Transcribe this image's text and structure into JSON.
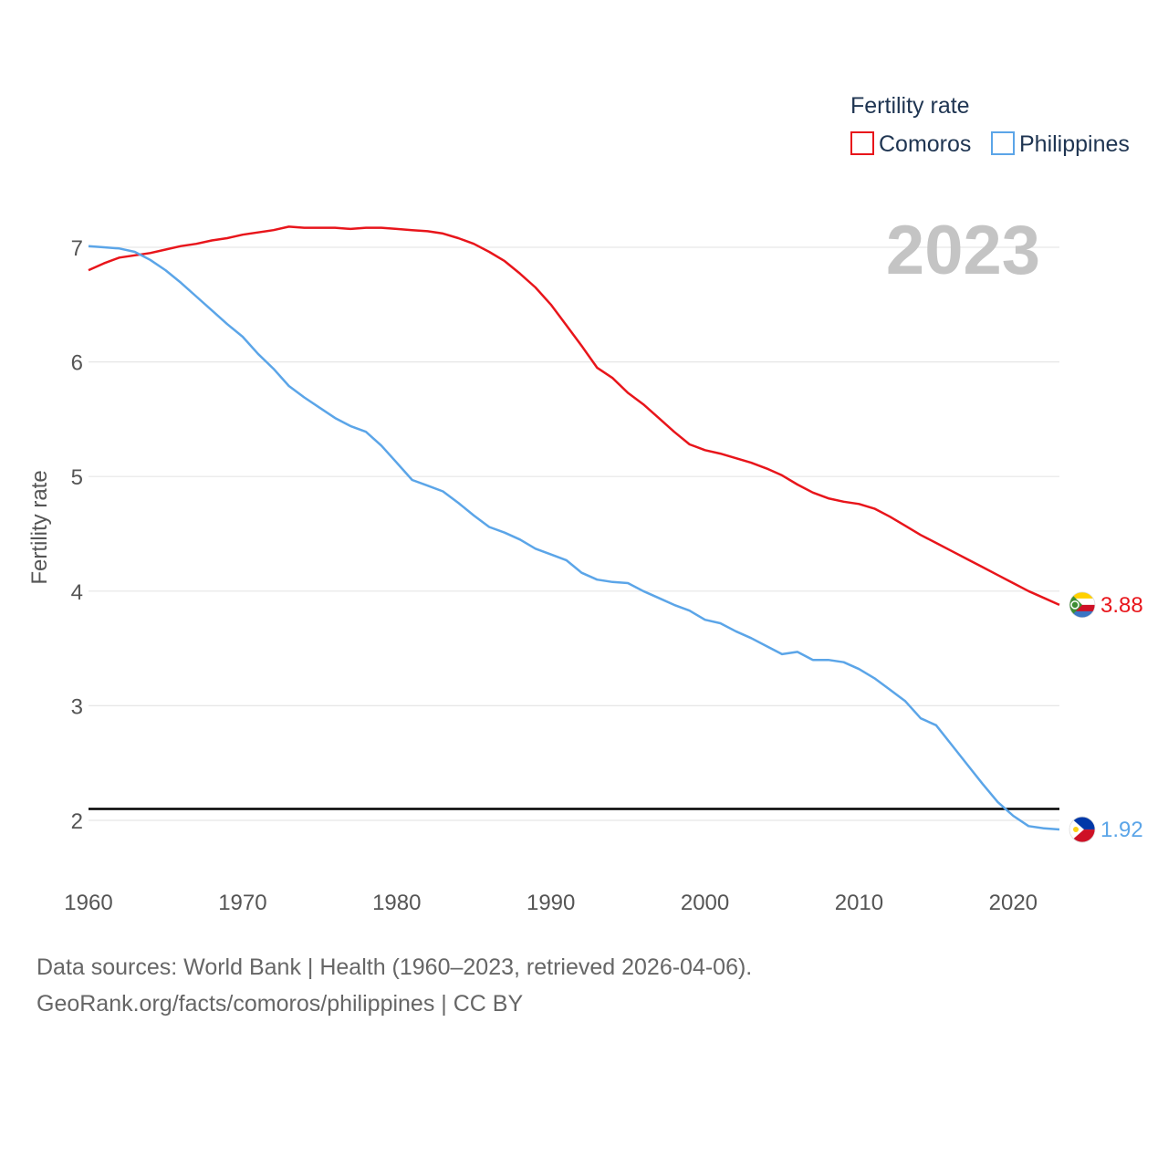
{
  "chart_data": {
    "type": "line",
    "title": "Fertility rate",
    "current_year": "2023",
    "ylabel": "Fertility rate",
    "xlabel": "",
    "xlim": [
      1960,
      2023
    ],
    "ylim": [
      1.5,
      7.5
    ],
    "x_ticks": [
      1960,
      1970,
      1980,
      1990,
      2000,
      2010,
      2020
    ],
    "y_ticks": [
      2,
      3,
      4,
      5,
      6,
      7
    ],
    "reference_line": 2.1,
    "legend_position": "top-right",
    "x": [
      1960,
      1961,
      1962,
      1963,
      1964,
      1965,
      1966,
      1967,
      1968,
      1969,
      1970,
      1971,
      1972,
      1973,
      1974,
      1975,
      1976,
      1977,
      1978,
      1979,
      1980,
      1981,
      1982,
      1983,
      1984,
      1985,
      1986,
      1987,
      1988,
      1989,
      1990,
      1991,
      1992,
      1993,
      1994,
      1995,
      1996,
      1997,
      1998,
      1999,
      2000,
      2001,
      2002,
      2003,
      2004,
      2005,
      2006,
      2007,
      2008,
      2009,
      2010,
      2011,
      2012,
      2013,
      2014,
      2015,
      2016,
      2017,
      2018,
      2019,
      2020,
      2021,
      2022,
      2023
    ],
    "series": [
      {
        "name": "Comoros",
        "color": "#e8151b",
        "flag": "comoros-flag-icon",
        "end_label": "3.88",
        "values": [
          6.8,
          6.86,
          6.91,
          6.93,
          6.95,
          6.98,
          7.01,
          7.03,
          7.06,
          7.08,
          7.11,
          7.13,
          7.15,
          7.18,
          7.17,
          7.17,
          7.17,
          7.16,
          7.17,
          7.17,
          7.16,
          7.15,
          7.14,
          7.12,
          7.08,
          7.03,
          6.96,
          6.88,
          6.77,
          6.65,
          6.5,
          6.32,
          6.14,
          5.95,
          5.86,
          5.73,
          5.63,
          5.51,
          5.39,
          5.28,
          5.23,
          5.2,
          5.16,
          5.12,
          5.07,
          5.01,
          4.93,
          4.86,
          4.81,
          4.78,
          4.76,
          4.72,
          4.65,
          4.57,
          4.49,
          4.42,
          4.35,
          4.28,
          4.21,
          4.14,
          4.07,
          4.0,
          3.94,
          3.88
        ]
      },
      {
        "name": "Philippines",
        "color": "#5ba5e8",
        "flag": "philippines-flag-icon",
        "end_label": "1.92",
        "values": [
          7.01,
          7.0,
          6.99,
          6.96,
          6.89,
          6.8,
          6.69,
          6.57,
          6.45,
          6.33,
          6.22,
          6.07,
          5.94,
          5.79,
          5.69,
          5.6,
          5.51,
          5.44,
          5.39,
          5.27,
          5.12,
          4.97,
          4.92,
          4.87,
          4.77,
          4.66,
          4.56,
          4.51,
          4.45,
          4.37,
          4.32,
          4.27,
          4.16,
          4.1,
          4.08,
          4.07,
          4.0,
          3.94,
          3.88,
          3.83,
          3.75,
          3.72,
          3.65,
          3.59,
          3.52,
          3.45,
          3.47,
          3.4,
          3.4,
          3.38,
          3.32,
          3.24,
          3.14,
          3.04,
          2.89,
          2.83,
          2.66,
          2.49,
          2.32,
          2.16,
          2.04,
          1.95,
          1.93,
          1.92
        ]
      }
    ]
  },
  "legend": {
    "title": "Fertility rate",
    "items": [
      "Comoros",
      "Philippines"
    ]
  },
  "footer": {
    "line1": "Data sources: World Bank | Health (1960–2023, retrieved 2026-04-06).",
    "line2": "GeoRank.org/facts/comoros/philippines | CC BY"
  }
}
